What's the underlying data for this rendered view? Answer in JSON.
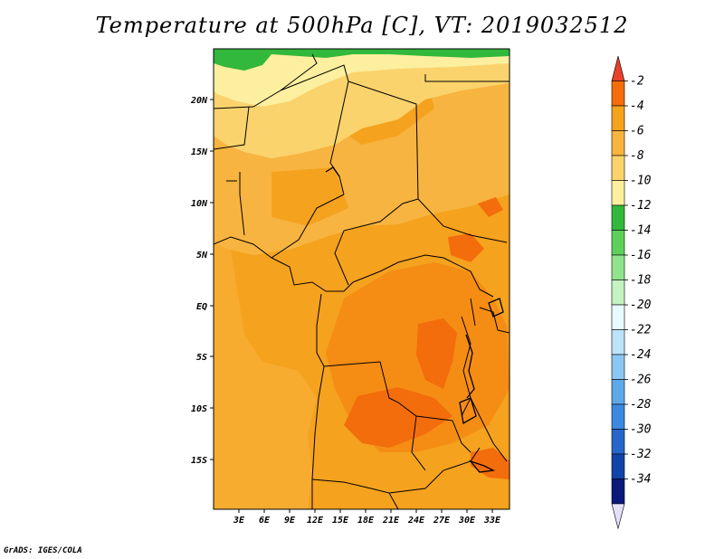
{
  "title": "Temperature at 500hPa [C], VT: 2019032512",
  "credit": "GrADS: IGES/COLA",
  "map": {
    "lat_ticks": [
      "20N",
      "15N",
      "10N",
      "5N",
      "EQ",
      "5S",
      "10S",
      "15S"
    ],
    "lon_ticks": [
      "3E",
      "6E",
      "9E",
      "12E",
      "15E",
      "18E",
      "21E",
      "24E",
      "27E",
      "30E",
      "33E"
    ]
  },
  "colorbar": {
    "labels": [
      "-2",
      "-4",
      "-6",
      "-8",
      "-10",
      "-12",
      "-14",
      "-16",
      "-18",
      "-20",
      "-22",
      "-24",
      "-26",
      "-28",
      "-30",
      "-32",
      "-34"
    ],
    "colors": [
      "#e8402a",
      "#f36d0c",
      "#f5a21e",
      "#f8b440",
      "#fad36d",
      "#fcef9f",
      "#32b83c",
      "#5dd05c",
      "#8fe38c",
      "#c4f2c0",
      "#e6fcff",
      "#bde3fa",
      "#8cc7f3",
      "#5ea8ea",
      "#3c89e0",
      "#2566c8",
      "#1044a8",
      "#0a1a7a",
      "#e3e0fa"
    ]
  }
}
